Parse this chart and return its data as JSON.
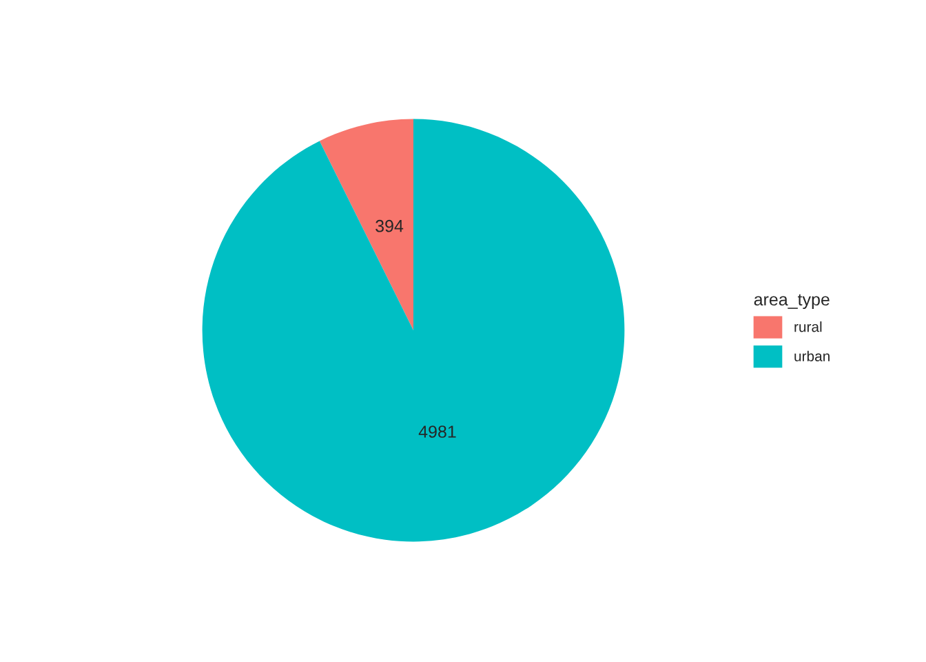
{
  "chart_data": {
    "type": "pie",
    "categories": [
      "rural",
      "urban"
    ],
    "values": [
      394,
      4981
    ],
    "colors": [
      "#f8766d",
      "#00bfc4"
    ],
    "legend_title": "area_type",
    "legend": "right",
    "data_labels": true
  }
}
